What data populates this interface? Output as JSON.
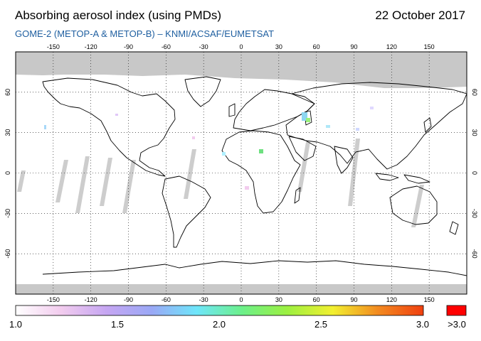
{
  "title": "Absorbing aerosol index (using PMDs)",
  "date": "22 October 2017",
  "subtitle": "GOME-2 (METOP-A & METOP-B)  –  KNMI/ACSAF/EUMETSAT",
  "map": {
    "projection": "equirectangular",
    "lon_range": [
      -180,
      180
    ],
    "lat_range": [
      -90,
      90
    ],
    "lon_ticks": [
      -150,
      -120,
      -90,
      -60,
      -30,
      0,
      30,
      60,
      90,
      120,
      150
    ],
    "lat_ticks": [
      60,
      30,
      0,
      -30,
      -60
    ],
    "grid": "dotted",
    "no_data_color": "#c8c8c8"
  },
  "colorbar": {
    "labels": [
      "1.0",
      "1.5",
      "2.0",
      "2.5",
      "3.0"
    ],
    "overflow_label": ">3.0",
    "overflow_color": "#ff0000",
    "gradient_colors": [
      "#ffffff",
      "#f2ccee",
      "#c6a6f2",
      "#9aa8f6",
      "#6ee6fa",
      "#6cf08a",
      "#9cf040",
      "#f2f030",
      "#f28a20",
      "#f04010"
    ]
  }
}
